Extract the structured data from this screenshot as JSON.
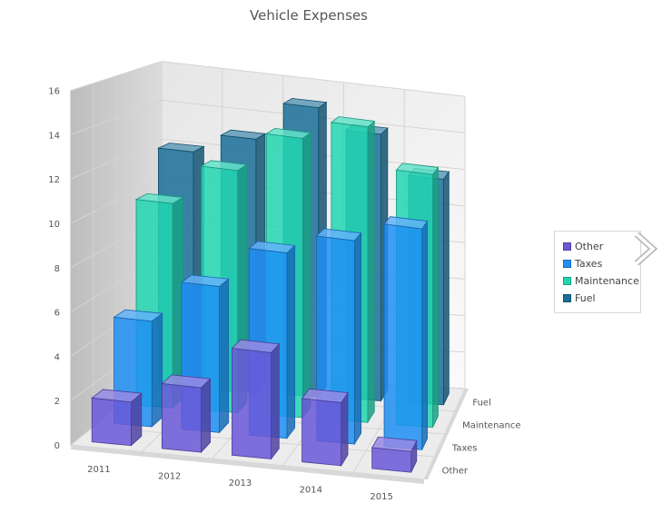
{
  "chart_data": {
    "type": "bar",
    "subtype": "3d-column",
    "title": "Vehicle Expenses",
    "categories": [
      "2011",
      "2012",
      "2013",
      "2014",
      "2015"
    ],
    "series": [
      {
        "name": "Other",
        "color": "#6a58d8",
        "values": [
          2,
          3,
          5,
          3,
          1
        ]
      },
      {
        "name": "Taxes",
        "color": "#1e8ff5",
        "values": [
          5,
          7,
          9,
          10,
          11
        ]
      },
      {
        "name": "Maintenance",
        "color": "#22d6b2",
        "values": [
          10,
          12,
          14,
          15,
          13
        ]
      },
      {
        "name": "Fuel",
        "color": "#1a6f98",
        "values": [
          12,
          13,
          15,
          14,
          12
        ]
      }
    ],
    "yticks": [
      "0",
      "2",
      "4",
      "6",
      "8",
      "10",
      "12",
      "14",
      "16"
    ],
    "ylim": [
      0,
      16
    ],
    "grid": true,
    "legend": "right"
  },
  "legend_nav_icon": "chevron-right-icon"
}
